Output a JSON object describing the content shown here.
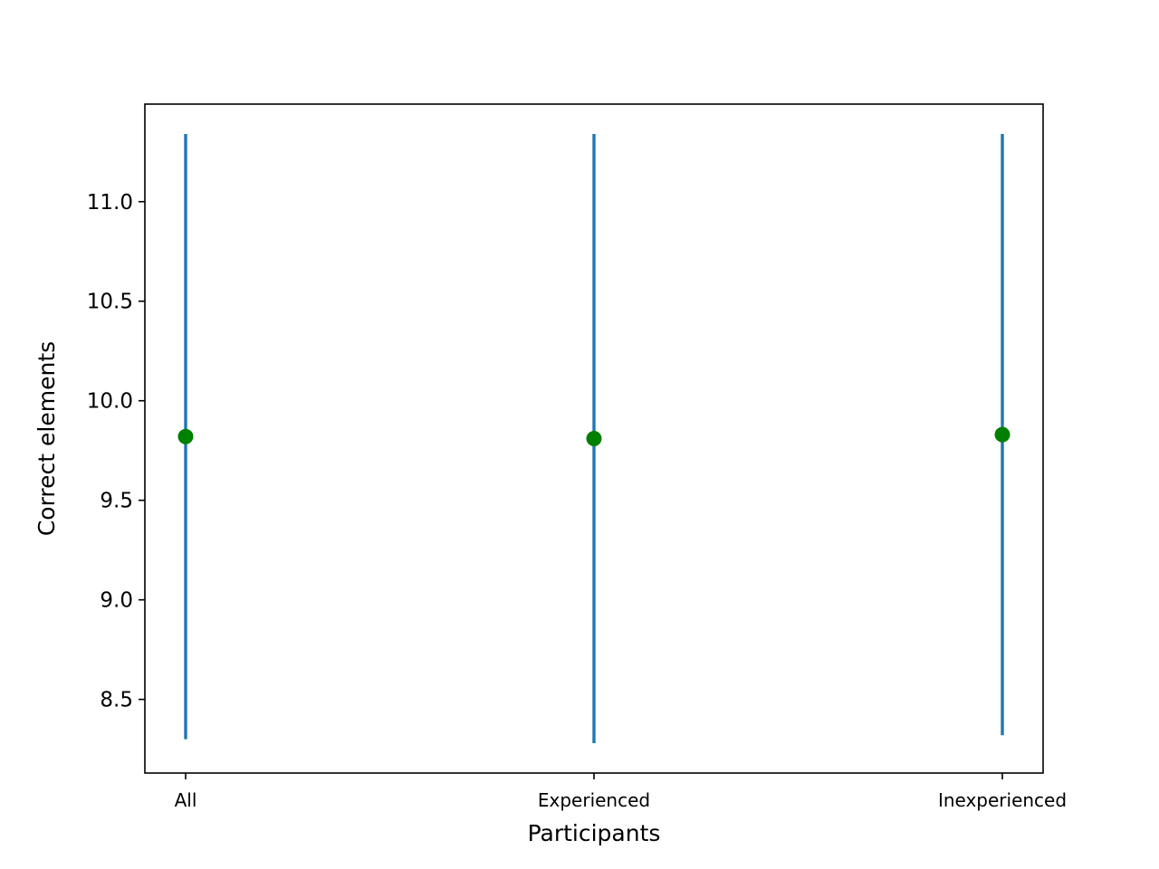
{
  "chart_data": {
    "type": "scatter",
    "title": "",
    "xlabel": "Participants",
    "ylabel": "Correct elements",
    "categories": [
      "All",
      "Experienced",
      "Inexperienced"
    ],
    "series": [
      {
        "values": [
          9.82,
          9.81,
          9.83
        ],
        "error_low": [
          8.3,
          8.28,
          8.32
        ],
        "error_high": [
          11.34,
          11.34,
          11.34
        ],
        "marker_color": "#008000",
        "errorbar_color": "#1f77b4"
      }
    ],
    "ylim": [
      8.13,
      11.49
    ],
    "yticks": [
      8.5,
      9.0,
      9.5,
      10.0,
      10.5,
      11.0
    ],
    "ytick_labels": [
      "8.5",
      "9.0",
      "9.5",
      "10.0",
      "10.5",
      "11.0"
    ],
    "grid": false,
    "legend": "none"
  }
}
